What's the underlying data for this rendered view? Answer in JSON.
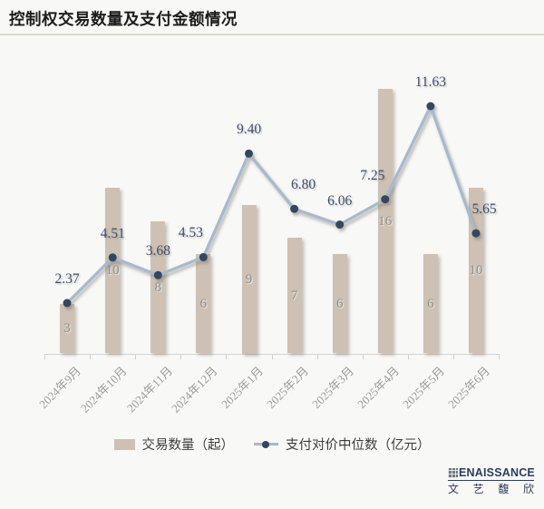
{
  "title": "控制权交易数量及支付金额情况",
  "chart_data": {
    "type": "bar+line",
    "title": "控制权交易数量及支付金额情况",
    "categories": [
      "2024年9月",
      "2024年10月",
      "2024年11月",
      "2024年12月",
      "2025年1月",
      "2025年2月",
      "2025年3月",
      "2025年4月",
      "2025年5月",
      "2025年6月"
    ],
    "series": [
      {
        "name": "交易数量（起）",
        "type": "bar",
        "values": [
          3,
          10,
          8,
          6,
          9,
          7,
          6,
          16,
          6,
          10
        ],
        "axis_max": 18,
        "color": "#cec1b3",
        "label_color": "#8f8f8f"
      },
      {
        "name": "支付对价中位数（亿元）",
        "type": "line",
        "values": [
          2.37,
          4.51,
          3.68,
          4.53,
          9.4,
          6.8,
          6.06,
          7.25,
          11.63,
          5.65
        ],
        "labels": [
          "2.37",
          "4.51",
          "3.68",
          "4.53",
          "9.40",
          "6.80",
          "6.06",
          "7.25",
          "11.63",
          "5.65"
        ],
        "axis_max": 14,
        "line_color": "#a9b9cc",
        "dot_color": "#35465f",
        "label_color": "#3d4d6e"
      }
    ],
    "label_dx": [
      0,
      0,
      0,
      -14,
      0,
      10,
      0,
      -14,
      0,
      9
    ],
    "xlabel": "",
    "ylabel": "",
    "grid": false,
    "y_axis_visible": false,
    "x_label_rotation": -45,
    "legend_position": "bottom"
  },
  "legend": {
    "bar_label": "交易数量（起）",
    "line_label": "支付对价中位数（亿元）"
  },
  "logo": {
    "wordmark": "ENAISSANCE",
    "chinese_name": "文艺馥欣"
  },
  "colors": {
    "background": "#f8f8f6",
    "bar": "#cec1b3",
    "line": "#a9b9cc",
    "dot": "#35465f",
    "line_label": "#3d4d6e",
    "bar_label": "#8f8f8f",
    "axis_label": "#9a9a9a",
    "brand_navy": "#2d3c5e"
  }
}
